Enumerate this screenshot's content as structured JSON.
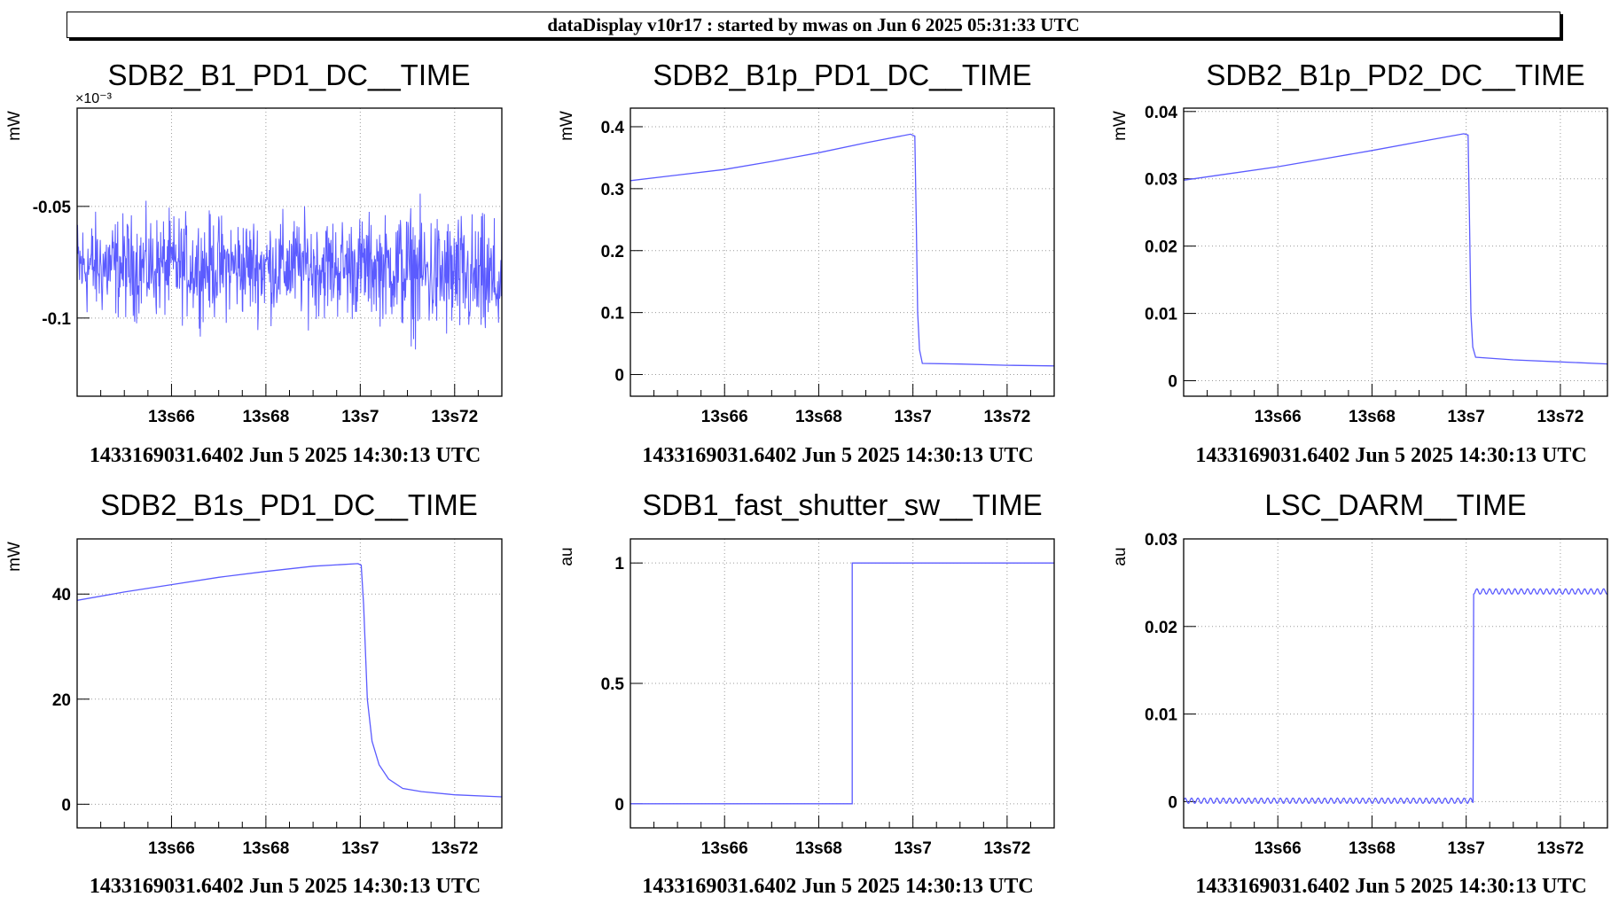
{
  "banner": "dataDisplay v10r17 : started by mwas on Jun  6 2025 05:31:33 UTC",
  "colors": {
    "trace": "#5b5bff",
    "grid": "#9a9a9a",
    "frame": "#000000"
  },
  "chart_data": [
    {
      "type": "line",
      "title": "SDB2_B1_PD1_DC__TIME",
      "ylabel": "mW",
      "y_exponent": "×10⁻³",
      "x_tick_labels": [
        "13s66",
        "13s68",
        "13s7",
        "13s72"
      ],
      "x_ticks": [
        13.66,
        13.68,
        13.7,
        13.72
      ],
      "xlim": [
        13.64,
        13.73
      ],
      "y_ticks": [
        -0.05,
        -0.1
      ],
      "y_tick_labels": [
        "-0.05",
        "-0.1"
      ],
      "ylim": [
        -0.135,
        -0.006
      ],
      "grid": true,
      "noise": {
        "mean": -0.077,
        "amplitude": 0.022,
        "mean_end": -0.085
      },
      "footer": "1433169031.6402 Jun 5 2025 14:30:13 UTC"
    },
    {
      "type": "line",
      "title": "SDB2_B1p_PD1_DC__TIME",
      "ylabel": "mW",
      "x_tick_labels": [
        "13s66",
        "13s68",
        "13s7",
        "13s72"
      ],
      "x_ticks": [
        13.66,
        13.68,
        13.7,
        13.72
      ],
      "xlim": [
        13.64,
        13.73
      ],
      "y_ticks": [
        0,
        0.1,
        0.2,
        0.3,
        0.4
      ],
      "y_tick_labels": [
        "0",
        "0.1",
        "0.2",
        "0.3",
        "0.4"
      ],
      "ylim": [
        -0.035,
        0.43
      ],
      "grid": true,
      "x": [
        13.64,
        13.65,
        13.66,
        13.67,
        13.68,
        13.69,
        13.6995,
        13.7004,
        13.7007,
        13.701,
        13.7014,
        13.702,
        13.71,
        13.72,
        13.73
      ],
      "y": [
        0.313,
        0.322,
        0.331,
        0.344,
        0.358,
        0.374,
        0.388,
        0.385,
        0.25,
        0.1,
        0.04,
        0.018,
        0.017,
        0.015,
        0.014
      ],
      "footer": "1433169031.6402 Jun 5 2025 14:30:13 UTC"
    },
    {
      "type": "line",
      "title": "SDB2_B1p_PD2_DC__TIME",
      "ylabel": "mW",
      "x_tick_labels": [
        "13s66",
        "13s68",
        "13s7",
        "13s72"
      ],
      "x_ticks": [
        13.66,
        13.68,
        13.7,
        13.72
      ],
      "xlim": [
        13.64,
        13.73
      ],
      "y_ticks": [
        0,
        0.01,
        0.02,
        0.03,
        0.04
      ],
      "y_tick_labels": [
        "0",
        "0.01",
        "0.02",
        "0.03",
        "0.04"
      ],
      "ylim": [
        -0.0023,
        0.0405
      ],
      "grid": true,
      "x": [
        13.64,
        13.65,
        13.66,
        13.67,
        13.68,
        13.69,
        13.6995,
        13.7004,
        13.7007,
        13.701,
        13.7014,
        13.702,
        13.71,
        13.72,
        13.73
      ],
      "y": [
        0.0298,
        0.0308,
        0.0318,
        0.033,
        0.0342,
        0.0355,
        0.0367,
        0.0365,
        0.024,
        0.01,
        0.005,
        0.0035,
        0.0031,
        0.0028,
        0.0025
      ],
      "footer": "1433169031.6402 Jun 5 2025 14:30:13 UTC"
    },
    {
      "type": "line",
      "title": "SDB2_B1s_PD1_DC__TIME",
      "ylabel": "mW",
      "x_tick_labels": [
        "13s66",
        "13s68",
        "13s7",
        "13s72"
      ],
      "x_ticks": [
        13.66,
        13.68,
        13.7,
        13.72
      ],
      "xlim": [
        13.64,
        13.73
      ],
      "y_ticks": [
        0,
        20,
        40
      ],
      "y_tick_labels": [
        "0",
        "20",
        "40"
      ],
      "ylim": [
        -4.5,
        50.5
      ],
      "grid": true,
      "x": [
        13.64,
        13.65,
        13.66,
        13.67,
        13.68,
        13.69,
        13.6995,
        13.7002,
        13.7007,
        13.7015,
        13.7025,
        13.704,
        13.706,
        13.709,
        13.713,
        13.72,
        13.73
      ],
      "y": [
        38.8,
        40.4,
        41.8,
        43.2,
        44.3,
        45.3,
        45.8,
        45.5,
        38,
        20,
        12,
        7.5,
        4.8,
        3.0,
        2.4,
        1.8,
        1.4
      ],
      "footer": "1433169031.6402 Jun 5 2025 14:30:13 UTC"
    },
    {
      "type": "line",
      "title": "SDB1_fast_shutter_sw__TIME",
      "ylabel": "au",
      "x_tick_labels": [
        "13s66",
        "13s68",
        "13s7",
        "13s72"
      ],
      "x_ticks": [
        13.66,
        13.68,
        13.7,
        13.72
      ],
      "xlim": [
        13.64,
        13.73
      ],
      "y_ticks": [
        0,
        0.5,
        1
      ],
      "y_tick_labels": [
        "0",
        "0.5",
        "1"
      ],
      "ylim": [
        -0.1,
        1.1
      ],
      "grid": true,
      "x": [
        13.64,
        13.6871,
        13.6871,
        13.73
      ],
      "y": [
        0,
        0,
        1,
        1
      ],
      "footer": "1433169031.6402 Jun 5 2025 14:30:13 UTC"
    },
    {
      "type": "line",
      "title": "LSC_DARM__TIME",
      "ylabel": "au",
      "x_tick_labels": [
        "13s66",
        "13s68",
        "13s7",
        "13s72"
      ],
      "x_ticks": [
        13.66,
        13.68,
        13.7,
        13.72
      ],
      "xlim": [
        13.64,
        13.73
      ],
      "y_ticks": [
        0,
        0.01,
        0.02,
        0.03
      ],
      "y_tick_labels": [
        "0",
        "0.01",
        "0.02",
        "0.03"
      ],
      "ylim": [
        -0.003,
        0.03
      ],
      "grid": true,
      "step": {
        "x_step": 13.7015,
        "y_before": 0.0001,
        "y_after": 0.024,
        "ripple": 0.0003
      },
      "footer": "1433169031.6402 Jun 5 2025 14:30:13 UTC"
    }
  ]
}
